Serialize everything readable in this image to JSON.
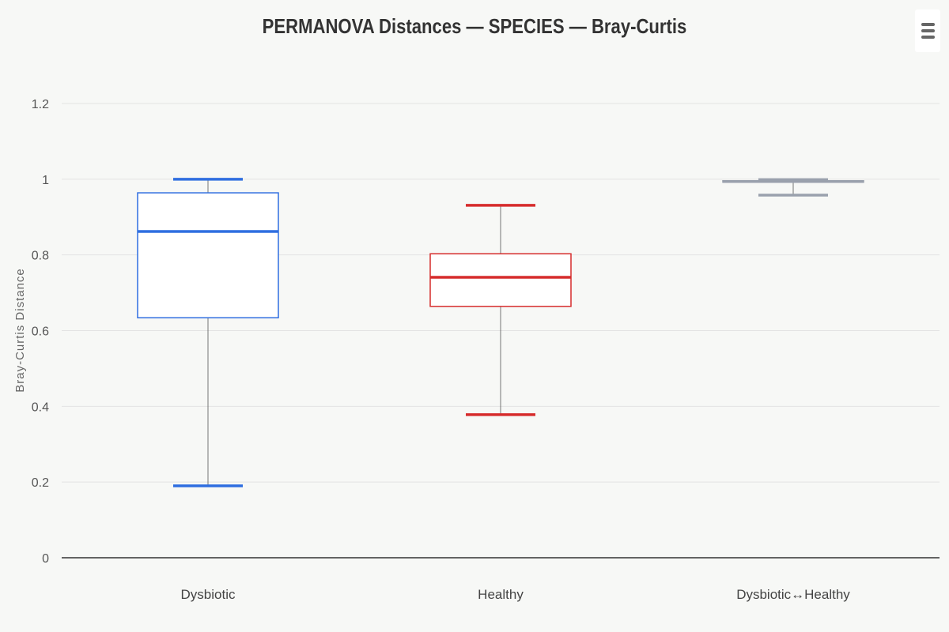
{
  "chart_data": {
    "type": "boxplot",
    "title": "PERMANOVA Distances — SPECIES — Bray-Curtis",
    "xlabel": "",
    "ylabel": "Bray-Curtis Distance",
    "ylim": [
      0,
      1.2
    ],
    "yticks": [
      "0",
      "0.2",
      "0.4",
      "0.6",
      "0.8",
      "1",
      "1.2"
    ],
    "ytick_values": [
      0,
      0.2,
      0.4,
      0.6,
      0.8,
      1,
      1.2
    ],
    "grid": true,
    "categories": [
      "Dysbiotic",
      "Healthy",
      "Dysbiotic↔Healthy"
    ],
    "boxes": [
      {
        "low": 0.19,
        "q1": 0.634,
        "median": 0.862,
        "q3": 0.964,
        "high": 1.0,
        "color": "#2f6ee0"
      },
      {
        "low": 0.378,
        "q1": 0.664,
        "median": 0.741,
        "q3": 0.803,
        "high": 0.931,
        "color": "#d62c2c"
      },
      {
        "low": 0.958,
        "q1": 0.992,
        "median": 0.994,
        "q3": 0.996,
        "high": 0.999,
        "color": "#9aa1ad"
      }
    ]
  },
  "menu_icon": "hamburger-menu-icon"
}
